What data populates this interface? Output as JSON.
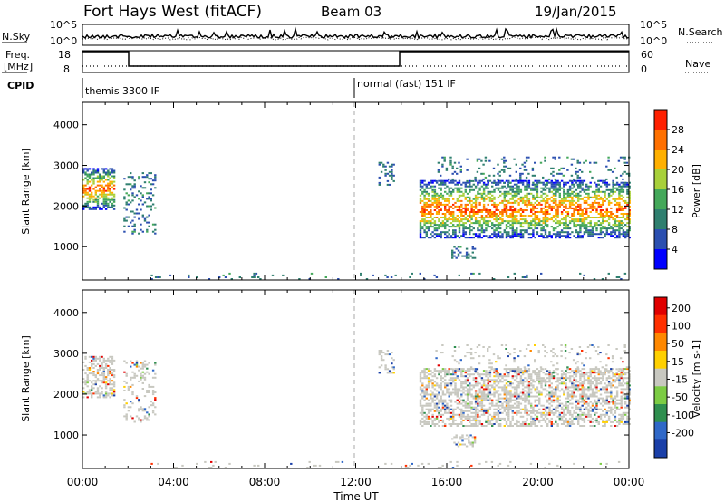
{
  "header": {
    "station": "Fort Hays West (fitACF)",
    "beam": "Beam 03",
    "date": "19/Jan/2015"
  },
  "noise_panel": {
    "left_label": "N.Sky",
    "left_ticks": [
      "10^5",
      "10^0"
    ],
    "right_label": "N.Search",
    "right_ticks": [
      "10^5",
      "10^0"
    ]
  },
  "freq_panel": {
    "left_label_1": "Freq.",
    "left_label_2": "[MHz]",
    "left_ticks": [
      "18",
      "8"
    ],
    "right_label": "Nave",
    "right_ticks": [
      "60",
      "0"
    ]
  },
  "cpid_panel": {
    "label": "CPID",
    "segments": [
      {
        "text": "themis 3300 IF",
        "start_hour": 0
      },
      {
        "text": "normal (fast) 151 IF",
        "start_hour": 12
      }
    ]
  },
  "chart_data": [
    {
      "type": "heatmap",
      "name": "power",
      "ylabel": "Slant Range [km]",
      "yticks": [
        "1000",
        "2000",
        "3000",
        "4000"
      ],
      "ylim": [
        180,
        4550
      ],
      "colorbar_label": "Power [dB]",
      "colorbar_ticks": [
        "4",
        "8",
        "12",
        "16",
        "20",
        "24",
        "28"
      ],
      "colorbar_colors": [
        "#0000ff",
        "#2b4fb0",
        "#2f7f6f",
        "#44a85a",
        "#a8d03a",
        "#ffb000",
        "#ff7000",
        "#ff2000"
      ],
      "xlim_hours": [
        0,
        24
      ]
    },
    {
      "type": "heatmap",
      "name": "velocity",
      "ylabel": "Slant Range [km]",
      "yticks": [
        "1000",
        "2000",
        "3000",
        "4000"
      ],
      "ylim": [
        180,
        4550
      ],
      "colorbar_label": "Velocity [m s-1]",
      "colorbar_ticks": [
        "200",
        "100",
        "50",
        "15",
        "-15",
        "-50",
        "-100",
        "-200"
      ],
      "colorbar_colors": [
        "#1a3fa8",
        "#2f68c8",
        "#2f8f4f",
        "#7ccc44",
        "#c8c8c0",
        "#ffd000",
        "#ff8800",
        "#ff3000",
        "#e00000"
      ],
      "xlim_hours": [
        0,
        24
      ]
    }
  ],
  "x_axis": {
    "tick_labels": [
      "00:00",
      "04:00",
      "08:00",
      "12:00",
      "16:00",
      "20:00",
      "00:00"
    ],
    "xlabel": "Time UT"
  }
}
